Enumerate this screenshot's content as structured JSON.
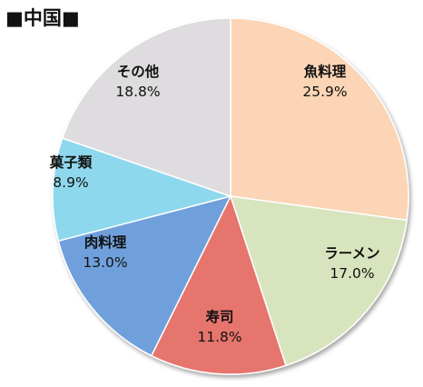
{
  "chart_data": {
    "type": "pie",
    "title": "■中国■",
    "start_angle_deg": 0,
    "direction": "clockwise",
    "slices": [
      {
        "name": "魚料理",
        "value": 25.9,
        "label": "25.9%",
        "color": "#FBD5B5"
      },
      {
        "name": "ラーメン",
        "value": 17.0,
        "label": "17.0%",
        "color": "#D7E4BD"
      },
      {
        "name": "寿司",
        "value": 11.8,
        "label": "11.8%",
        "color": "#E6756D"
      },
      {
        "name": "肉料理",
        "value": 13.0,
        "label": "13.0%",
        "color": "#6FA0DC"
      },
      {
        "name": "菓子類",
        "value": 8.9,
        "label": "8.9%",
        "color": "#8ED8EE"
      },
      {
        "name": "その他",
        "value": 18.8,
        "label": "18.8%",
        "color": "#DEDCDE"
      }
    ]
  }
}
